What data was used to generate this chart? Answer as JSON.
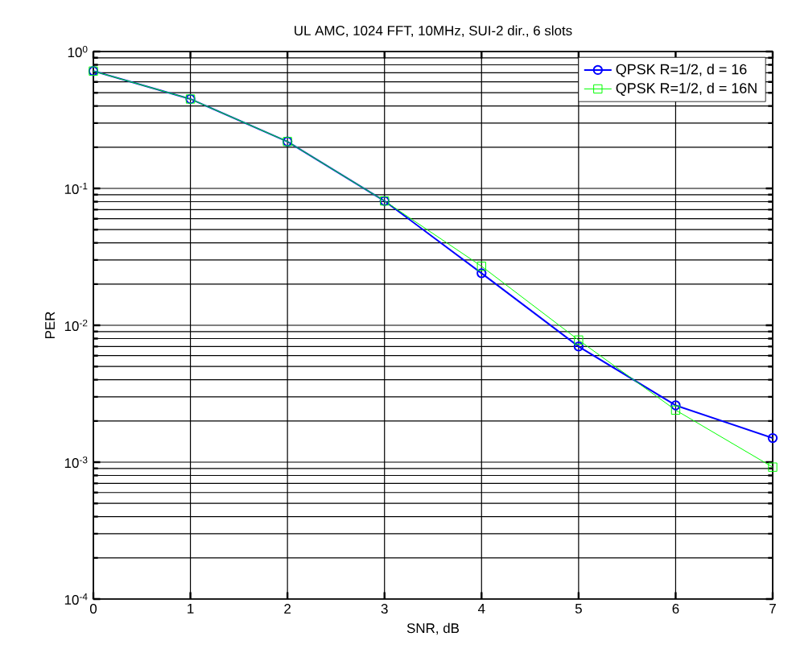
{
  "chart_data": {
    "type": "line",
    "title": "UL AMC, 1024 FFT, 10MHz, SUI-2 dir., 6 slots",
    "xlabel": "SNR, dB",
    "ylabel": "PER",
    "x": [
      0,
      1,
      2,
      3,
      4,
      5,
      6,
      7
    ],
    "series": [
      {
        "name": "QPSK R=1/2, d = 16",
        "color": "#0000ff",
        "marker": "circle",
        "values": [
          0.72,
          0.45,
          0.22,
          0.081,
          0.024,
          0.007,
          0.0026,
          0.0015
        ]
      },
      {
        "name": "QPSK R=1/2, d = 16N",
        "color": "#00ff00",
        "marker": "square",
        "values": [
          0.72,
          0.45,
          0.22,
          0.081,
          0.027,
          0.0078,
          0.0024,
          0.00092
        ]
      }
    ],
    "xlim": [
      0,
      7
    ],
    "xticks": [
      0,
      1,
      2,
      3,
      4,
      5,
      6,
      7
    ],
    "ylim": [
      0.0001,
      1
    ],
    "yticks": [
      {
        "value": 0.0001,
        "label": "10$^{-4}$"
      },
      {
        "value": 0.001,
        "label": "10$^{-3}$"
      },
      {
        "value": 0.01,
        "label": "10$^{-2}$"
      },
      {
        "value": 0.1,
        "label": "10$^{-1}$"
      },
      {
        "value": 1,
        "label": "10$^{0}$"
      }
    ],
    "log": "y",
    "grid": true,
    "legend": "top right",
    "line_style": "solid"
  }
}
